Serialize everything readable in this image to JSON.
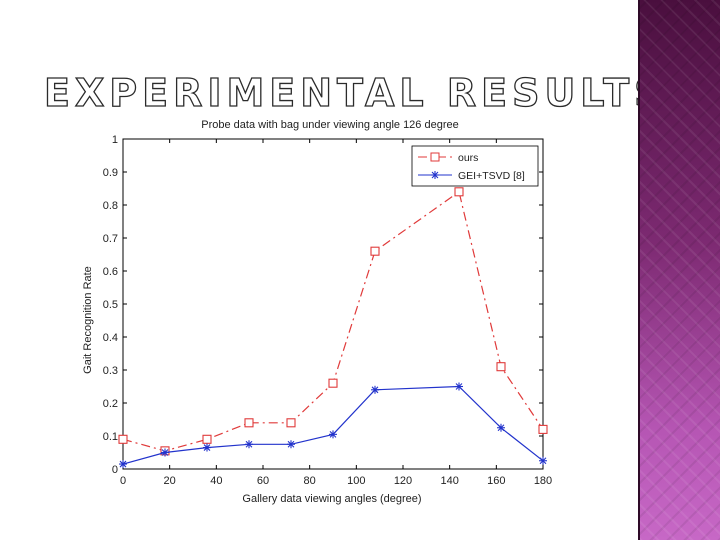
{
  "slide": {
    "title": "EXPERIMENTAL RESULTS"
  },
  "colors": {
    "ours": "#e03a3a",
    "gei": "#2233cc",
    "panel": "#7d2a72"
  },
  "chart_data": {
    "type": "line",
    "title": "Probe data with bag under viewing angle 126 degree",
    "xlabel": "Gallery data viewing angles (degree)",
    "ylabel": "Gait Recognition Rate",
    "xlim": [
      0,
      180
    ],
    "ylim": [
      0,
      1
    ],
    "xticks": [
      "0",
      "20",
      "40",
      "60",
      "80",
      "100",
      "120",
      "140",
      "160",
      "180"
    ],
    "yticks": [
      "0",
      "0.1",
      "0.2",
      "0.3",
      "0.4",
      "0.5",
      "0.6",
      "0.7",
      "0.8",
      "0.9",
      "1"
    ],
    "grid": false,
    "legend": "top-right",
    "x": [
      0,
      18,
      36,
      54,
      72,
      90,
      108,
      144,
      162,
      180
    ],
    "series": [
      {
        "name": "ours",
        "marker": "square",
        "dash": "dashdot",
        "values": [
          0.09,
          0.055,
          0.09,
          0.14,
          0.14,
          0.26,
          0.66,
          0.84,
          0.31,
          0.12
        ]
      },
      {
        "name": "GEI+TSVD [8]",
        "marker": "star",
        "dash": "solid",
        "values": [
          0.015,
          0.05,
          0.065,
          0.075,
          0.075,
          0.105,
          0.24,
          0.25,
          0.125,
          0.025
        ]
      }
    ]
  }
}
